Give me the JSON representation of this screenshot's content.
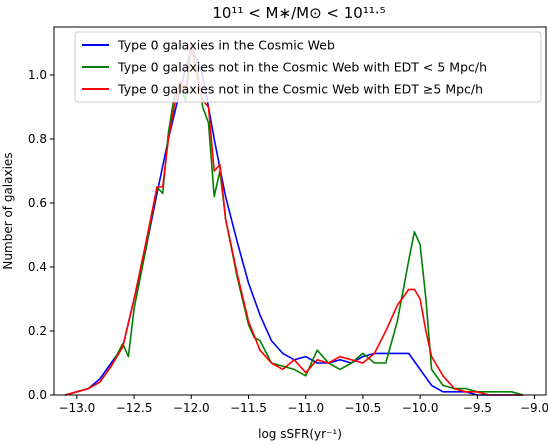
{
  "chart_data": {
    "type": "line",
    "title": "10^11 < M_*/M_⊙ < 10^11.5",
    "title_display": "10¹¹ < M∗/M⊙ < 10¹¹·⁵",
    "xlabel": "log sSFR(yr⁻¹)",
    "ylabel": "Number of galaxies",
    "xlim": [
      -13.2,
      -8.9
    ],
    "ylim": [
      0.0,
      1.15
    ],
    "xticks": [
      -13.0,
      -12.5,
      -12.0,
      -11.5,
      -11.0,
      -10.5,
      -10.0,
      -9.5,
      -9.0
    ],
    "xtick_labels": [
      "−13.0",
      "−12.5",
      "−12.0",
      "−11.5",
      "−11.0",
      "−10.5",
      "−10.0",
      "−9.5",
      "−9.0"
    ],
    "yticks": [
      0.0,
      0.2,
      0.4,
      0.6,
      0.8,
      1.0
    ],
    "ytick_labels": [
      "0.0",
      "0.2",
      "0.4",
      "0.6",
      "0.8",
      "1.0"
    ],
    "grid": false,
    "legend_position": "top",
    "series": [
      {
        "name": "Type 0 galaxies in the Cosmic Web",
        "color": "#0000ff",
        "x": [
          -13.1,
          -13.0,
          -12.9,
          -12.8,
          -12.7,
          -12.6,
          -12.5,
          -12.4,
          -12.3,
          -12.2,
          -12.1,
          -12.05,
          -12.0,
          -11.95,
          -11.9,
          -11.8,
          -11.7,
          -11.6,
          -11.5,
          -11.4,
          -11.3,
          -11.2,
          -11.1,
          -11.0,
          -10.9,
          -10.8,
          -10.7,
          -10.6,
          -10.5,
          -10.4,
          -10.3,
          -10.2,
          -10.1,
          -10.0,
          -9.9,
          -9.8,
          -9.7,
          -9.6,
          -9.5,
          -9.4,
          -9.3,
          -9.2,
          -9.1
        ],
        "y": [
          0.0,
          0.01,
          0.02,
          0.05,
          0.1,
          0.15,
          0.3,
          0.45,
          0.63,
          0.8,
          0.95,
          1.02,
          1.08,
          1.05,
          1.0,
          0.8,
          0.62,
          0.48,
          0.35,
          0.25,
          0.17,
          0.13,
          0.11,
          0.12,
          0.1,
          0.1,
          0.11,
          0.1,
          0.12,
          0.13,
          0.13,
          0.13,
          0.13,
          0.08,
          0.03,
          0.01,
          0.01,
          0.01,
          0.0,
          0.0,
          0.0,
          0.0,
          0.0
        ]
      },
      {
        "name": "Type 0 galaxies not in the Cosmic Web with EDT < 5 Mpc/h",
        "color": "#008000",
        "x": [
          -13.1,
          -13.0,
          -12.9,
          -12.8,
          -12.7,
          -12.6,
          -12.55,
          -12.5,
          -12.4,
          -12.3,
          -12.25,
          -12.2,
          -12.15,
          -12.1,
          -12.05,
          -12.0,
          -11.95,
          -11.9,
          -11.85,
          -11.8,
          -11.75,
          -11.7,
          -11.6,
          -11.5,
          -11.45,
          -11.4,
          -11.3,
          -11.2,
          -11.1,
          -11.0,
          -10.9,
          -10.8,
          -10.7,
          -10.6,
          -10.5,
          -10.4,
          -10.3,
          -10.2,
          -10.1,
          -10.05,
          -10.0,
          -9.95,
          -9.9,
          -9.8,
          -9.7,
          -9.6,
          -9.5,
          -9.4,
          -9.3,
          -9.2,
          -9.1
        ],
        "y": [
          0.0,
          0.01,
          0.02,
          0.04,
          0.09,
          0.16,
          0.12,
          0.27,
          0.45,
          0.65,
          0.63,
          0.82,
          0.93,
          0.97,
          0.92,
          1.08,
          1.02,
          0.9,
          0.85,
          0.62,
          0.7,
          0.55,
          0.37,
          0.22,
          0.18,
          0.17,
          0.1,
          0.09,
          0.08,
          0.06,
          0.14,
          0.1,
          0.08,
          0.1,
          0.13,
          0.1,
          0.1,
          0.23,
          0.42,
          0.51,
          0.47,
          0.3,
          0.08,
          0.03,
          0.02,
          0.02,
          0.01,
          0.01,
          0.01,
          0.01,
          0.0
        ]
      },
      {
        "name": "Type 0 galaxies not in the Cosmic Web with EDT ≥5 Mpc/h",
        "color": "#ff0000",
        "x": [
          -13.1,
          -13.0,
          -12.9,
          -12.8,
          -12.7,
          -12.6,
          -12.5,
          -12.4,
          -12.3,
          -12.25,
          -12.2,
          -12.15,
          -12.1,
          -12.05,
          -12.0,
          -11.95,
          -11.9,
          -11.85,
          -11.8,
          -11.75,
          -11.7,
          -11.6,
          -11.5,
          -11.4,
          -11.3,
          -11.2,
          -11.1,
          -11.0,
          -10.9,
          -10.8,
          -10.7,
          -10.6,
          -10.5,
          -10.4,
          -10.3,
          -10.2,
          -10.1,
          -10.05,
          -10.0,
          -9.95,
          -9.9,
          -9.8,
          -9.7,
          -9.6,
          -9.5,
          -9.4,
          -9.3,
          -9.2,
          -9.1
        ],
        "y": [
          0.0,
          0.01,
          0.02,
          0.04,
          0.09,
          0.15,
          0.3,
          0.47,
          0.65,
          0.65,
          0.8,
          0.9,
          0.98,
          0.95,
          1.1,
          1.0,
          0.92,
          0.9,
          0.7,
          0.72,
          0.55,
          0.38,
          0.23,
          0.14,
          0.1,
          0.08,
          0.11,
          0.07,
          0.11,
          0.1,
          0.12,
          0.11,
          0.1,
          0.13,
          0.2,
          0.28,
          0.33,
          0.33,
          0.3,
          0.2,
          0.12,
          0.06,
          0.02,
          0.01,
          0.01,
          0.0,
          0.0,
          0.0,
          0.0
        ]
      }
    ]
  }
}
